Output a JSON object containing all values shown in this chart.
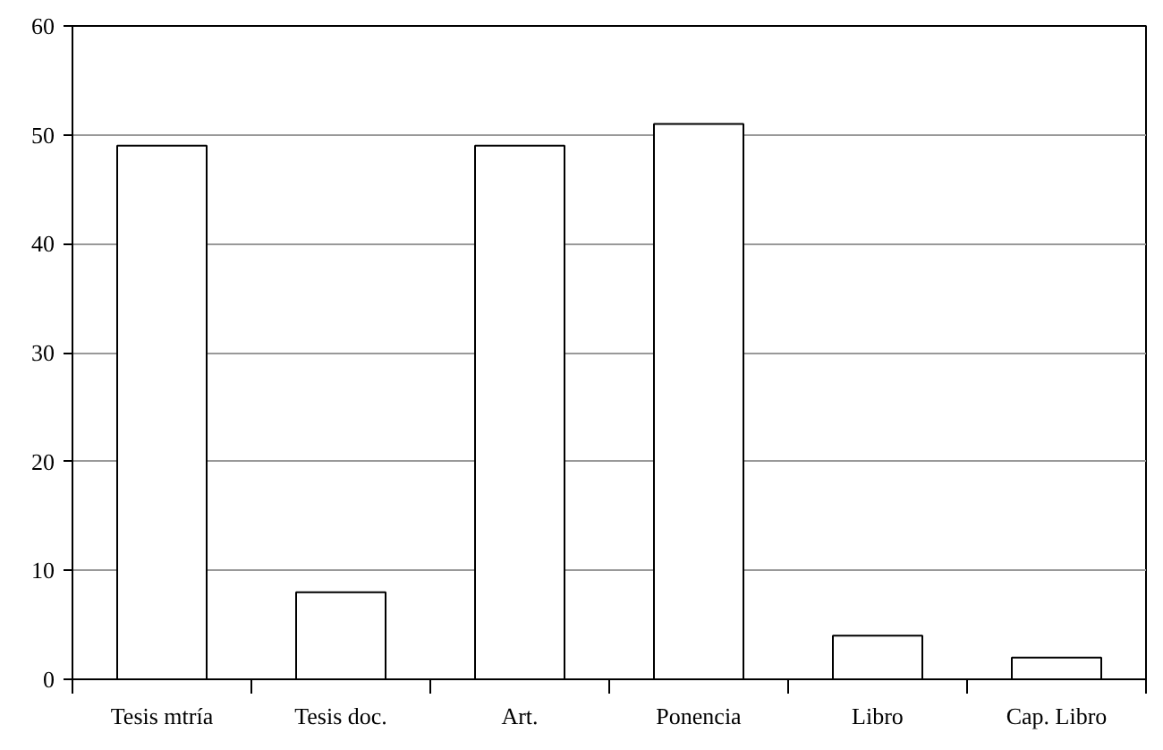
{
  "chart_data": {
    "type": "bar",
    "categories": [
      "Tesis mtría",
      "Tesis doc.",
      "Art.",
      "Ponencia",
      "Libro",
      "Cap. Libro"
    ],
    "values": [
      49,
      8,
      49,
      51,
      4,
      2
    ],
    "color": "#ffffff",
    "ylim": [
      0,
      60
    ],
    "yticks": [
      0,
      10,
      20,
      30,
      40,
      50,
      60
    ],
    "grid": "y"
  }
}
